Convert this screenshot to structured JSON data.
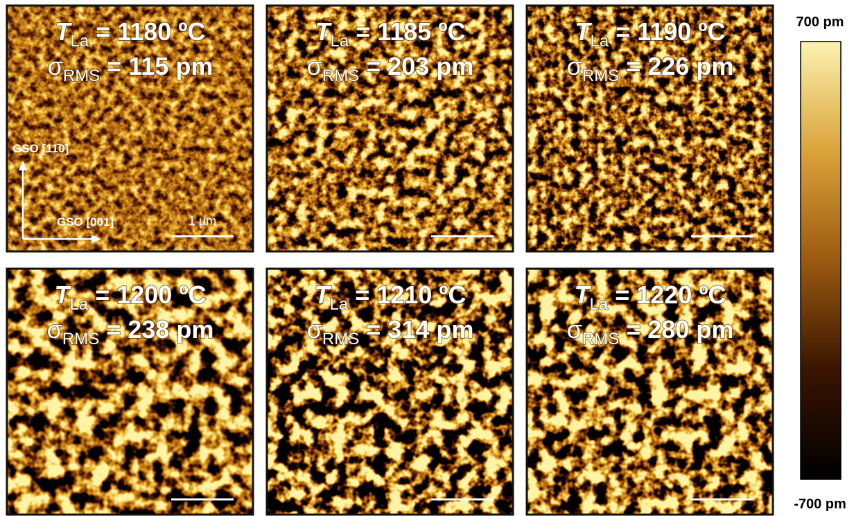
{
  "panels": [
    {
      "t_symbol": "T",
      "t_subscript": "La",
      "t_value": "= 1180 ºC",
      "sigma_symbol": "σ",
      "sigma_subscript": "RMS",
      "sigma_value": "= 115 pm"
    },
    {
      "t_symbol": "T",
      "t_subscript": "La",
      "t_value": "= 1185 ºC",
      "sigma_symbol": "σ",
      "sigma_subscript": "RMS",
      "sigma_value": "= 203 pm"
    },
    {
      "t_symbol": "T",
      "t_subscript": "La",
      "t_value": "= 1190 ºC",
      "sigma_symbol": "σ",
      "sigma_subscript": "RMS",
      "sigma_value": "= 226 pm"
    },
    {
      "t_symbol": "T",
      "t_subscript": "La",
      "t_value": "= 1200 ºC",
      "sigma_symbol": "σ",
      "sigma_subscript": "RMS",
      "sigma_value": "= 238 pm"
    },
    {
      "t_symbol": "T",
      "t_subscript": "La",
      "t_value": "= 1210 ºC",
      "sigma_symbol": "σ",
      "sigma_subscript": "RMS",
      "sigma_value": "= 314 pm"
    },
    {
      "t_symbol": "T",
      "t_subscript": "La",
      "t_value": "= 1220 ºC",
      "sigma_symbol": "σ",
      "sigma_subscript": "RMS",
      "sigma_value": "= 280 pm"
    }
  ],
  "axis_labels": {
    "vertical": "GSO [11̄0]",
    "horizontal": "GSO [001]"
  },
  "scale_bar": "1 µm",
  "colorbar": {
    "max": "700 pm",
    "min": "-700 pm"
  }
}
